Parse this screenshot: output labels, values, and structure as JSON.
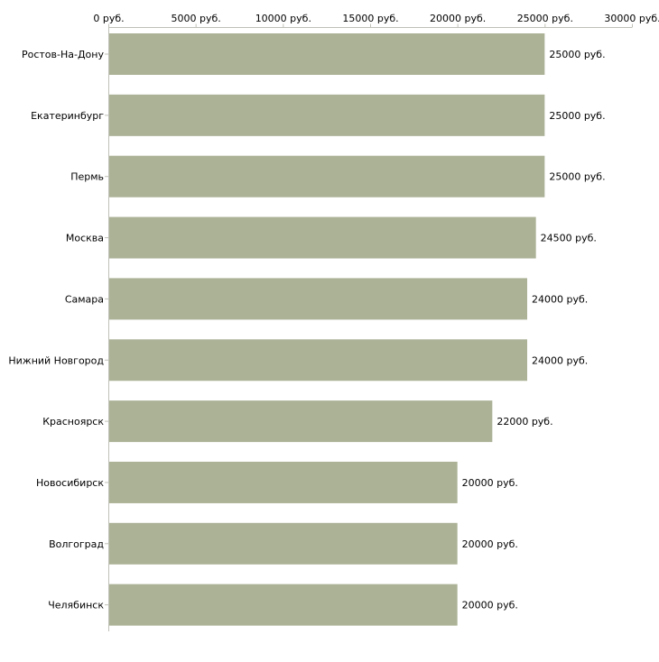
{
  "chart_data": {
    "type": "bar",
    "orientation": "horizontal",
    "title": "",
    "xlabel": "",
    "ylabel": "",
    "categories": [
      "Ростов-На-Дону",
      "Екатеринбург",
      "Пермь",
      "Москва",
      "Самара",
      "Нижний Новгород",
      "Красноярск",
      "Новосибирск",
      "Волгоград",
      "Челябинск"
    ],
    "values": [
      25000,
      25000,
      25000,
      24500,
      24000,
      24000,
      22000,
      20000,
      20000,
      20000
    ],
    "value_labels": [
      "25000 руб.",
      "25000 руб.",
      "25000 руб.",
      "24500 руб.",
      "24000 руб.",
      "24000 руб.",
      "22000 руб.",
      "20000 руб.",
      "20000 руб.",
      "20000 руб."
    ],
    "xlim": [
      0,
      30000
    ],
    "xticks": [
      0,
      5000,
      10000,
      15000,
      20000,
      25000,
      30000
    ],
    "xtick_labels": [
      "0 руб.",
      "5000 руб.",
      "10000 руб.",
      "15000 руб.",
      "20000 руб.",
      "25000 руб.",
      "30000 руб."
    ],
    "axis_position": "top",
    "grid": false,
    "bar_color": "#abb296",
    "axis_color": "#c0c0b8"
  }
}
